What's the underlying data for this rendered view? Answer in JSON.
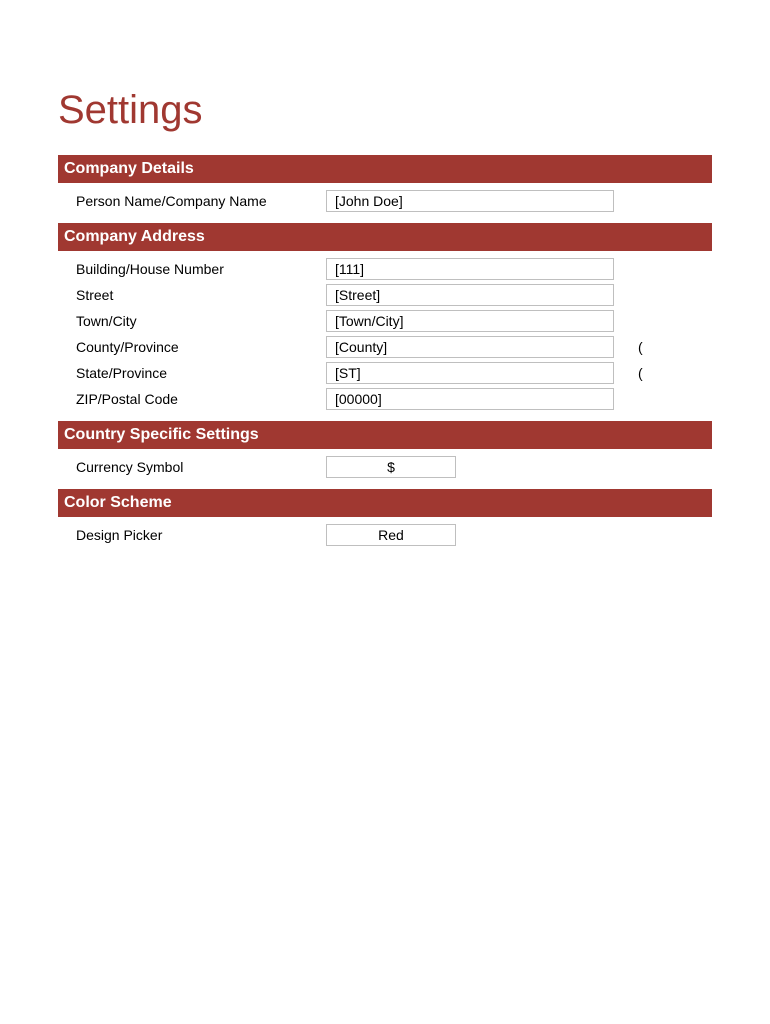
{
  "title": "Settings",
  "sections": {
    "company_details": {
      "header": "Company Details",
      "fields": {
        "person_name": {
          "label": "Person Name/Company Name",
          "value": "[John Doe]"
        }
      }
    },
    "company_address": {
      "header": "Company Address",
      "fields": {
        "building": {
          "label": "Building/House Number",
          "value": "[111]"
        },
        "street": {
          "label": "Street",
          "value": "[Street]"
        },
        "town": {
          "label": "Town/City",
          "value": "[Town/City]"
        },
        "county": {
          "label": "County/Province",
          "value": "[County]",
          "trailing": "("
        },
        "state": {
          "label": "State/Province",
          "value": "[ST]",
          "trailing": "("
        },
        "zip": {
          "label": "ZIP/Postal Code",
          "value": "[00000]"
        }
      }
    },
    "country_specific": {
      "header": "Country Specific Settings",
      "fields": {
        "currency": {
          "label": "Currency Symbol",
          "value": "$"
        }
      }
    },
    "color_scheme": {
      "header": "Color Scheme",
      "fields": {
        "design_picker": {
          "label": "Design Picker",
          "value": "Red"
        }
      }
    }
  },
  "colors": {
    "brand": "#a03831",
    "text": "#000000",
    "input_border": "#bfbfbf",
    "background": "#ffffff"
  }
}
